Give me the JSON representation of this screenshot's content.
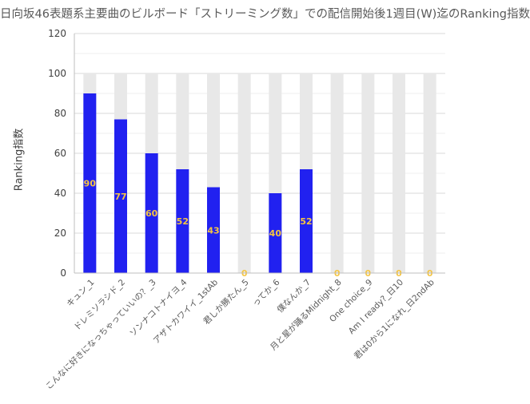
{
  "chart_data": {
    "type": "bar",
    "title": "日向坂46表題系主要曲のビルボード「ストリーミング数」での配信開始後1週目(W)迄のRanking指数",
    "xlabel": "",
    "ylabel": "Ranking指数",
    "ylim": [
      0,
      120
    ],
    "yticks": [
      0,
      20,
      40,
      60,
      80,
      100,
      120
    ],
    "grid": true,
    "legend": "none",
    "categories": [
      "キュン_1",
      "ドレミソラシド_2",
      "こんなに好きになっちゃっていいの？_3",
      "ソンナコトナイヨ_4",
      "アザトカワイイ_1stAb",
      "君しか勝たん_5",
      "ってか_6",
      "僕なんか_7",
      "月と星が踊るMidnight_8",
      "One choice_9",
      "Am I ready?_日10",
      "君は0から1になれ_日2ndAb"
    ],
    "series": [
      {
        "values": [
          90,
          77,
          60,
          52,
          43,
          0,
          40,
          52,
          0,
          0,
          0,
          0
        ]
      }
    ],
    "background_bar_value": 100,
    "colors": {
      "bar": "#2121f0",
      "background_bar": "#e8e8e8",
      "label_text": "#f5c542",
      "axis": "#bfbfbf",
      "grid": "#efefef"
    }
  }
}
